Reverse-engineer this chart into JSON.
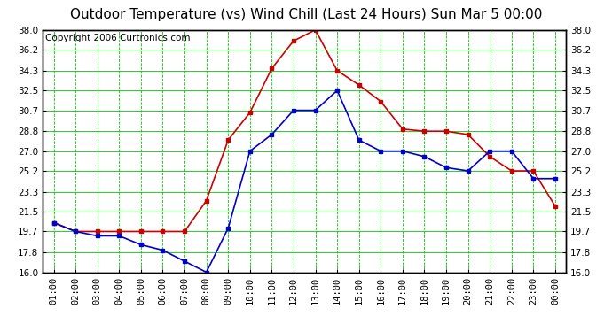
{
  "title": "Outdoor Temperature (vs) Wind Chill (Last 24 Hours) Sun Mar 5 00:00",
  "copyright": "Copyright 2006 Curtronics.com",
  "x_labels": [
    "01:00",
    "02:00",
    "03:00",
    "04:00",
    "05:00",
    "06:00",
    "07:00",
    "08:00",
    "09:00",
    "10:00",
    "11:00",
    "12:00",
    "13:00",
    "14:00",
    "15:00",
    "16:00",
    "17:00",
    "18:00",
    "19:00",
    "20:00",
    "21:00",
    "22:00",
    "23:00",
    "00:00"
  ],
  "temp_red": [
    20.5,
    19.7,
    19.7,
    19.7,
    19.7,
    19.7,
    19.7,
    22.5,
    28.0,
    30.5,
    34.5,
    37.0,
    38.0,
    34.3,
    33.0,
    31.5,
    29.0,
    28.8,
    28.8,
    28.5,
    26.5,
    25.2,
    25.2,
    22.0
  ],
  "wind_blue": [
    20.5,
    19.7,
    19.3,
    19.3,
    18.5,
    18.0,
    17.0,
    16.0,
    20.0,
    27.0,
    28.5,
    30.7,
    30.7,
    32.5,
    28.0,
    27.0,
    27.0,
    26.5,
    25.5,
    25.2,
    27.0,
    27.0,
    24.5,
    24.5
  ],
  "ylim": [
    16.0,
    38.0
  ],
  "yticks": [
    16.0,
    17.8,
    19.7,
    21.5,
    23.3,
    25.2,
    27.0,
    28.8,
    30.7,
    32.5,
    34.3,
    36.2,
    38.0
  ],
  "bg_color": "#ffffff",
  "plot_bg": "#ffffff",
  "grid_color": "#00cc00",
  "temp_color": "#cc0000",
  "wind_color": "#0000cc",
  "title_fontsize": 11,
  "copyright_fontsize": 7.5,
  "tick_fontsize": 7.5
}
